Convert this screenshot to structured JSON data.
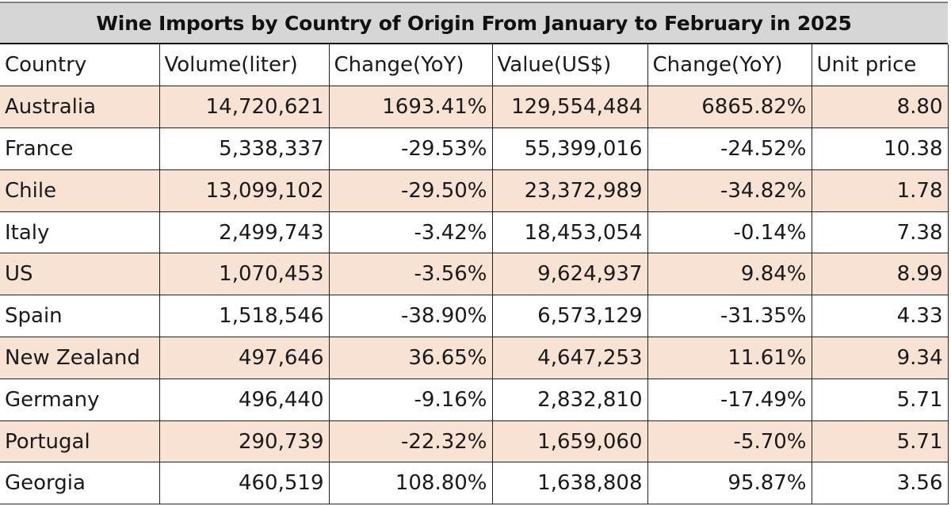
{
  "chart_data": {
    "type": "table",
    "title": "Wine Imports by Country of Origin From January to February in 2025",
    "columns": [
      "Country",
      "Volume(liter)",
      "Change(YoY)",
      "Value(US$)",
      "Change(YoY)",
      "Unit price"
    ],
    "rows": [
      [
        "Australia",
        "14,720,621",
        "1693.41%",
        "129,554,484",
        "6865.82%",
        "8.80"
      ],
      [
        "France",
        "5,338,337",
        "-29.53%",
        "55,399,016",
        "-24.52%",
        "10.38"
      ],
      [
        "Chile",
        "13,099,102",
        "-29.50%",
        "23,372,989",
        "-34.82%",
        "1.78"
      ],
      [
        "Italy",
        "2,499,743",
        "-3.42%",
        "18,453,054",
        "-0.14%",
        "7.38"
      ],
      [
        "US",
        "1,070,453",
        "-3.56%",
        "9,624,937",
        "9.84%",
        "8.99"
      ],
      [
        "Spain",
        "1,518,546",
        "-38.90%",
        "6,573,129",
        "-31.35%",
        "4.33"
      ],
      [
        "New Zealand",
        "497,646",
        "36.65%",
        "4,647,253",
        "11.61%",
        "9.34"
      ],
      [
        "Germany",
        "496,440",
        "-9.16%",
        "2,832,810",
        "-17.49%",
        "5.71"
      ],
      [
        "Portugal",
        "290,739",
        "-22.32%",
        "1,659,060",
        "-5.70%",
        "5.71"
      ],
      [
        "Georgia",
        "460,519",
        "108.80%",
        "1,638,808",
        "95.87%",
        "3.56"
      ]
    ],
    "shaded_row_color": "#f7e2d4",
    "header_color": "#d6d6d6"
  }
}
